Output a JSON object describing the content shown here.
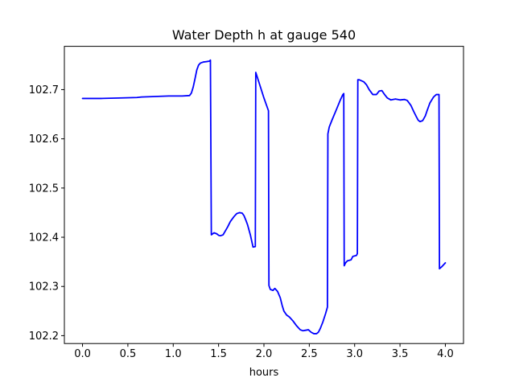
{
  "chart_data": {
    "type": "line",
    "title": "Water Depth h at gauge 540",
    "xlabel": "hours",
    "ylabel": "",
    "xlim": [
      -0.2,
      4.2
    ],
    "ylim": [
      102.184,
      102.788
    ],
    "xticks": [
      0.0,
      0.5,
      1.0,
      1.5,
      2.0,
      2.5,
      3.0,
      3.5,
      4.0
    ],
    "xtick_labels": [
      "0.0",
      "0.5",
      "1.0",
      "1.5",
      "2.0",
      "2.5",
      "3.0",
      "3.5",
      "4.0"
    ],
    "yticks": [
      102.2,
      102.3,
      102.4,
      102.5,
      102.6,
      102.7
    ],
    "ytick_labels": [
      "102.2",
      "102.3",
      "102.4",
      "102.5",
      "102.6",
      "102.7"
    ],
    "grid": false,
    "line_color": "#0000ff",
    "series": [
      {
        "x": [
          0.0,
          0.2,
          0.4,
          0.6,
          0.65,
          0.8,
          0.95,
          1.1,
          1.18,
          1.2,
          1.22,
          1.24,
          1.26,
          1.28,
          1.3,
          1.33,
          1.37,
          1.4,
          1.41,
          1.42,
          1.45,
          1.48,
          1.5,
          1.52,
          1.55,
          1.6,
          1.63,
          1.67,
          1.7,
          1.73,
          1.76,
          1.78,
          1.8,
          1.82,
          1.85,
          1.88,
          1.905,
          1.91,
          1.95,
          2.0,
          2.05,
          2.055,
          2.07,
          2.1,
          2.12,
          2.15,
          2.18,
          2.2,
          2.22,
          2.25,
          2.28,
          2.32,
          2.36,
          2.4,
          2.43,
          2.46,
          2.49,
          2.52,
          2.55,
          2.58,
          2.6,
          2.62,
          2.65,
          2.68,
          2.7,
          2.705,
          2.72,
          2.75,
          2.8,
          2.84,
          2.87,
          2.88,
          2.885,
          2.9,
          2.92,
          2.96,
          2.98,
          3.02,
          3.03,
          3.035,
          3.05,
          3.1,
          3.13,
          3.16,
          3.2,
          3.24,
          3.27,
          3.3,
          3.33,
          3.36,
          3.4,
          3.45,
          3.5,
          3.55,
          3.58,
          3.62,
          3.65,
          3.68,
          3.7,
          3.72,
          3.75,
          3.78,
          3.8,
          3.83,
          3.87,
          3.9,
          3.93,
          3.935,
          3.96,
          4.0
        ],
        "y": [
          102.682,
          102.682,
          102.683,
          102.684,
          102.685,
          102.686,
          102.687,
          102.687,
          102.688,
          102.693,
          102.705,
          102.722,
          102.74,
          102.75,
          102.754,
          102.756,
          102.757,
          102.758,
          102.76,
          102.405,
          102.409,
          102.407,
          102.404,
          102.403,
          102.405,
          102.421,
          102.432,
          102.442,
          102.448,
          102.45,
          102.449,
          102.444,
          102.435,
          102.425,
          102.405,
          102.38,
          102.381,
          102.735,
          102.712,
          102.683,
          102.657,
          102.302,
          102.294,
          102.292,
          102.296,
          102.29,
          102.277,
          102.262,
          102.25,
          102.242,
          102.238,
          102.23,
          102.22,
          102.212,
          102.21,
          102.211,
          102.212,
          102.207,
          102.204,
          102.204,
          102.207,
          102.214,
          102.228,
          102.245,
          102.258,
          102.61,
          102.624,
          102.638,
          102.66,
          102.678,
          102.69,
          102.692,
          102.342,
          102.348,
          102.352,
          102.354,
          102.361,
          102.363,
          102.367,
          102.72,
          102.72,
          102.716,
          102.71,
          102.7,
          102.69,
          102.69,
          102.697,
          102.698,
          102.69,
          102.683,
          102.679,
          102.681,
          102.679,
          102.68,
          102.678,
          102.668,
          102.656,
          102.645,
          102.638,
          102.635,
          102.637,
          102.647,
          102.658,
          102.673,
          102.685,
          102.69,
          102.69,
          102.336,
          102.34,
          102.348
        ]
      }
    ]
  }
}
